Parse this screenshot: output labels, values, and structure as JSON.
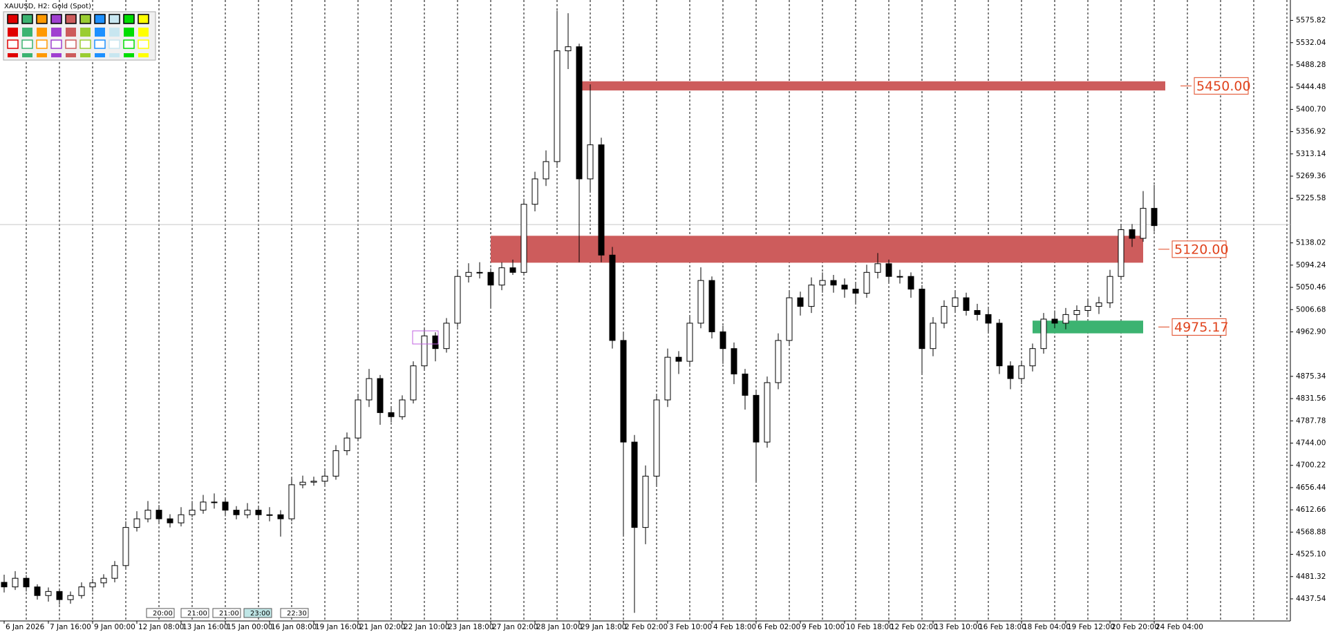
{
  "chart_data": {
    "type": "candlestick",
    "title": "XAUUSD, H2:  Gold (Spot)",
    "categories": [
      "6 Jan 2026",
      null,
      null,
      null,
      "7 Jan 16:00",
      null,
      null,
      null,
      "9 Jan 00:00",
      null,
      null,
      null,
      "12 Jan 08:00",
      null,
      null,
      null,
      "13 Jan 16:00",
      null,
      null,
      null,
      "15 Jan 00:00",
      null,
      null,
      null,
      "16 Jan 08:00",
      null,
      null,
      null,
      "19 Jan 16:00",
      null,
      null,
      null,
      "21 Jan 02:00",
      null,
      null,
      null,
      "22 Jan 10:00",
      null,
      null,
      null,
      "23 Jan 18:00",
      null,
      null,
      null,
      "27 Jan 02:00",
      null,
      null,
      null,
      "28 Jan 10:00",
      null,
      null,
      null,
      "29 Jan 18:00",
      null,
      null,
      null,
      "2 Feb 02:00",
      null,
      null,
      null,
      "3 Feb 10:00",
      null,
      null,
      null,
      "4 Feb 18:00",
      null,
      null,
      null,
      "6 Feb 02:00",
      null,
      null,
      null,
      "9 Feb 10:00",
      null,
      null,
      null,
      "10 Feb 18:00",
      null,
      null,
      null,
      "12 Feb 02:00",
      null,
      null,
      null,
      "13 Feb 10:00",
      null,
      null,
      null,
      "16 Feb 18:00",
      null,
      null,
      null,
      "18 Feb 04:00",
      null,
      null,
      null,
      "19 Feb 12:00",
      null,
      null,
      null,
      "20 Feb 20:00",
      null,
      null,
      null,
      "24 Feb 04:00"
    ],
    "ohlc": [
      [
        4470,
        4485,
        4450,
        4461
      ],
      [
        4461,
        4492,
        4455,
        4478
      ],
      [
        4478,
        4484,
        4452,
        4461
      ],
      [
        4461,
        4466,
        4436,
        4444
      ],
      [
        4444,
        4460,
        4432,
        4452
      ],
      [
        4452,
        4458,
        4426,
        4436
      ],
      [
        4436,
        4452,
        4428,
        4444
      ],
      [
        4444,
        4470,
        4438,
        4461
      ],
      [
        4461,
        4477,
        4452,
        4469
      ],
      [
        4469,
        4486,
        4460,
        4478
      ],
      [
        4478,
        4512,
        4470,
        4503
      ],
      [
        4503,
        4590,
        4498,
        4578
      ],
      [
        4578,
        4610,
        4570,
        4595
      ],
      [
        4595,
        4630,
        4588,
        4612
      ],
      [
        4612,
        4622,
        4585,
        4595
      ],
      [
        4595,
        4604,
        4578,
        4587
      ],
      [
        4587,
        4618,
        4580,
        4603
      ],
      [
        4603,
        4630,
        4598,
        4612
      ],
      [
        4612,
        4642,
        4605,
        4628
      ],
      [
        4628,
        4645,
        4615,
        4628
      ],
      [
        4628,
        4634,
        4600,
        4612
      ],
      [
        4612,
        4620,
        4594,
        4603
      ],
      [
        4603,
        4626,
        4596,
        4612
      ],
      [
        4612,
        4620,
        4594,
        4603
      ],
      [
        4603,
        4618,
        4590,
        4603
      ],
      [
        4603,
        4612,
        4560,
        4595
      ],
      [
        4595,
        4675,
        4590,
        4662
      ],
      [
        4662,
        4680,
        4655,
        4667
      ],
      [
        4667,
        4678,
        4660,
        4669
      ],
      [
        4669,
        4690,
        4662,
        4679
      ],
      [
        4679,
        4740,
        4672,
        4729
      ],
      [
        4729,
        4765,
        4720,
        4754
      ],
      [
        4754,
        4840,
        4748,
        4829
      ],
      [
        4829,
        4890,
        4815,
        4871
      ],
      [
        4871,
        4878,
        4780,
        4804
      ],
      [
        4804,
        4815,
        4785,
        4796
      ],
      [
        4796,
        4838,
        4790,
        4829
      ],
      [
        4829,
        4905,
        4822,
        4896
      ],
      [
        4896,
        4968,
        4890,
        4955
      ],
      [
        4955,
        4962,
        4905,
        4930
      ],
      [
        4930,
        4990,
        4922,
        4980
      ],
      [
        4980,
        5085,
        4972,
        5072
      ],
      [
        5072,
        5098,
        5060,
        5080
      ],
      [
        5080,
        5100,
        5068,
        5080
      ],
      [
        5080,
        5088,
        5010,
        5055
      ],
      [
        5055,
        5100,
        5045,
        5089
      ],
      [
        5089,
        5105,
        5075,
        5080
      ],
      [
        5080,
        5225,
        5075,
        5214
      ],
      [
        5214,
        5278,
        5200,
        5264
      ],
      [
        5264,
        5320,
        5250,
        5298
      ],
      [
        5298,
        5595,
        5290,
        5516
      ],
      [
        5516,
        5590,
        5480,
        5524
      ],
      [
        5524,
        5530,
        5100,
        5264
      ],
      [
        5264,
        5450,
        5240,
        5331
      ],
      [
        5331,
        5345,
        5100,
        5114
      ],
      [
        5114,
        5130,
        4930,
        4946
      ],
      [
        4946,
        4960,
        4560,
        4746
      ],
      [
        4746,
        4760,
        4410,
        4578
      ],
      [
        4578,
        4700,
        4545,
        4679
      ],
      [
        4679,
        4840,
        4660,
        4829
      ],
      [
        4829,
        4930,
        4815,
        4913
      ],
      [
        4913,
        4925,
        4880,
        4905
      ],
      [
        4905,
        4995,
        4895,
        4980
      ],
      [
        4980,
        5090,
        4970,
        5064
      ],
      [
        5064,
        5072,
        4950,
        4963
      ],
      [
        4963,
        4975,
        4900,
        4930
      ],
      [
        4930,
        4942,
        4860,
        4880
      ],
      [
        4880,
        4890,
        4810,
        4838
      ],
      [
        4838,
        4848,
        4670,
        4746
      ],
      [
        4746,
        4875,
        4735,
        4863
      ],
      [
        4863,
        4960,
        4850,
        4946
      ],
      [
        4946,
        5045,
        4935,
        5030
      ],
      [
        5030,
        5042,
        4995,
        5013
      ],
      [
        5013,
        5070,
        5000,
        5055
      ],
      [
        5055,
        5080,
        5040,
        5064
      ],
      [
        5064,
        5075,
        5040,
        5055
      ],
      [
        5055,
        5068,
        5030,
        5047
      ],
      [
        5047,
        5060,
        5020,
        5039
      ],
      [
        5039,
        5095,
        5030,
        5080
      ],
      [
        5080,
        5118,
        5068,
        5097
      ],
      [
        5097,
        5105,
        5060,
        5072
      ],
      [
        5072,
        5085,
        5058,
        5072
      ],
      [
        5072,
        5080,
        5030,
        5047
      ],
      [
        5047,
        5055,
        4880,
        4930
      ],
      [
        4930,
        4992,
        4915,
        4980
      ],
      [
        4980,
        5025,
        4970,
        5013
      ],
      [
        5013,
        5045,
        5000,
        5030
      ],
      [
        5030,
        5040,
        4995,
        5005
      ],
      [
        5005,
        5018,
        4985,
        4997
      ],
      [
        4997,
        5008,
        4960,
        4980
      ],
      [
        4980,
        4988,
        4880,
        4896
      ],
      [
        4896,
        4905,
        4850,
        4871
      ],
      [
        4871,
        4905,
        4860,
        4896
      ],
      [
        4896,
        4940,
        4885,
        4930
      ],
      [
        4930,
        5000,
        4920,
        4988
      ],
      [
        4988,
        5005,
        4970,
        4980
      ],
      [
        4980,
        5010,
        4968,
        4997
      ],
      [
        4997,
        5015,
        4985,
        5005
      ],
      [
        5005,
        5025,
        4995,
        5013
      ],
      [
        5013,
        5032,
        4998,
        5020
      ],
      [
        5020,
        5085,
        5010,
        5072
      ],
      [
        5072,
        5175,
        5065,
        5164
      ],
      [
        5164,
        5175,
        5130,
        5147
      ],
      [
        5147,
        5240,
        5140,
        5206
      ],
      [
        5206,
        5252,
        5160,
        5172
      ]
    ],
    "ylim": [
      4394,
      5616
    ],
    "yticks": [
      5575.82,
      5532.04,
      5488.28,
      5444.48,
      {
        "value": 5400.7,
        "label": "5400.70"
      },
      5356.92,
      5313.14,
      5269.36,
      5225.58,
      5138.02,
      5094.24,
      5050.46,
      5006.68,
      {
        "value": 4962.9,
        "label": "4962.90"
      },
      4875.34,
      4831.56,
      4787.78,
      {
        "value": 4744,
        "label": "4744.00"
      },
      4700.22,
      4656.44,
      4612.66,
      4568.88,
      {
        "value": 4525.1,
        "label": "4525.10"
      },
      4481.32,
      4437.54
    ],
    "price_line": 5174,
    "zones": [
      {
        "label": "5450.00",
        "low": 5438,
        "high": 5456,
        "start": 52,
        "end": 105,
        "color": "#cd5c5c"
      },
      {
        "label": "5120.00",
        "low": 5099,
        "high": 5152,
        "start": 44,
        "end": 103,
        "color": "#cd5c5c"
      },
      {
        "label": "4975.17",
        "low": 4960,
        "high": 4985,
        "start": 93,
        "end": 103,
        "color": "#3cb371"
      }
    ],
    "timeline_tags": [
      "20:00",
      "21:00",
      "21:00",
      "23:00",
      "22:30"
    ]
  }
}
